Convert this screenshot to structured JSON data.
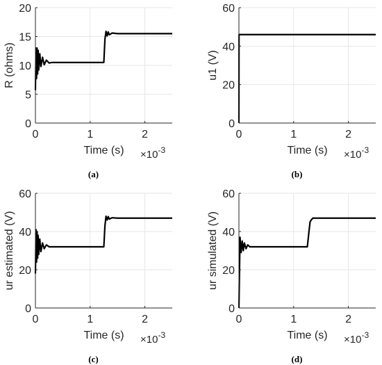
{
  "x_multiplier": "×10",
  "x_exponent": "-3",
  "chart_data": [
    {
      "panel": "a",
      "caption": "(a)",
      "type": "line",
      "xlabel": "Time (s)",
      "ylabel": "R (ohms)",
      "xlim": [
        0,
        2.5
      ],
      "ylim": [
        0,
        20
      ],
      "xticks": [
        0,
        1,
        2
      ],
      "yticks": [
        0,
        5,
        10,
        15,
        20
      ],
      "grid": true,
      "series": [
        {
          "x": [
            0,
            0.01,
            0.02,
            0.03,
            0.04,
            0.05,
            0.06,
            0.08,
            0.1,
            0.13,
            0.16,
            0.2,
            0.25,
            0.3,
            1.25,
            1.27,
            1.29,
            1.31,
            1.33,
            1.35,
            1.4,
            1.5,
            2.5
          ],
          "y": [
            5.7,
            13,
            7.7,
            13,
            8.5,
            12.6,
            9.2,
            12,
            9.8,
            11.4,
            10.1,
            10.9,
            10.4,
            10.5,
            10.5,
            14.5,
            15.9,
            15.1,
            15.8,
            15.3,
            15.6,
            15.5,
            15.5
          ]
        }
      ]
    },
    {
      "panel": "b",
      "caption": "(b)",
      "type": "line",
      "xlabel": "Time (s)",
      "ylabel": "u1 (V)",
      "xlim": [
        0,
        2.5
      ],
      "ylim": [
        0,
        60
      ],
      "xticks": [
        0,
        1,
        2
      ],
      "yticks": [
        0,
        20,
        40,
        60
      ],
      "grid": true,
      "series": [
        {
          "x": [
            0,
            0.002,
            2.5
          ],
          "y": [
            0,
            46,
            46
          ]
        }
      ]
    },
    {
      "panel": "c",
      "caption": "(c)",
      "type": "line",
      "xlabel": "Time (s)",
      "ylabel": "ur estimated (V)",
      "xlim": [
        0,
        2.5
      ],
      "ylim": [
        0,
        60
      ],
      "xticks": [
        0,
        1,
        2
      ],
      "yticks": [
        0,
        20,
        40,
        60
      ],
      "grid": true,
      "series": [
        {
          "x": [
            0,
            0.01,
            0.02,
            0.03,
            0.04,
            0.05,
            0.06,
            0.08,
            0.1,
            0.13,
            0.16,
            0.2,
            0.25,
            0.3,
            1.25,
            1.27,
            1.29,
            1.31,
            1.33,
            1.35,
            1.4,
            1.5,
            2.5
          ],
          "y": [
            18,
            41,
            24,
            40,
            26,
            38,
            28,
            36,
            29.5,
            34,
            31,
            33,
            32,
            32,
            32,
            43,
            48,
            46,
            47.8,
            46.5,
            47.2,
            47,
            47
          ]
        }
      ]
    },
    {
      "panel": "d",
      "caption": "(d)",
      "type": "line",
      "xlabel": "Time (s)",
      "ylabel": "ur simulated (V)",
      "xlim": [
        0,
        2.5
      ],
      "ylim": [
        0,
        60
      ],
      "xticks": [
        0,
        1,
        2
      ],
      "yticks": [
        0,
        20,
        40,
        60
      ],
      "grid": true,
      "series": [
        {
          "x": [
            0,
            0.02,
            0.04,
            0.06,
            0.08,
            0.1,
            0.13,
            0.16,
            0.2,
            0.25,
            0.3,
            1.25,
            1.28,
            1.3,
            1.32,
            1.35,
            1.4,
            1.5,
            2.5
          ],
          "y": [
            0,
            37,
            29,
            35,
            30,
            34,
            31,
            33,
            32,
            32,
            32,
            32,
            40,
            45,
            46,
            47,
            47,
            47,
            47
          ]
        }
      ]
    }
  ]
}
